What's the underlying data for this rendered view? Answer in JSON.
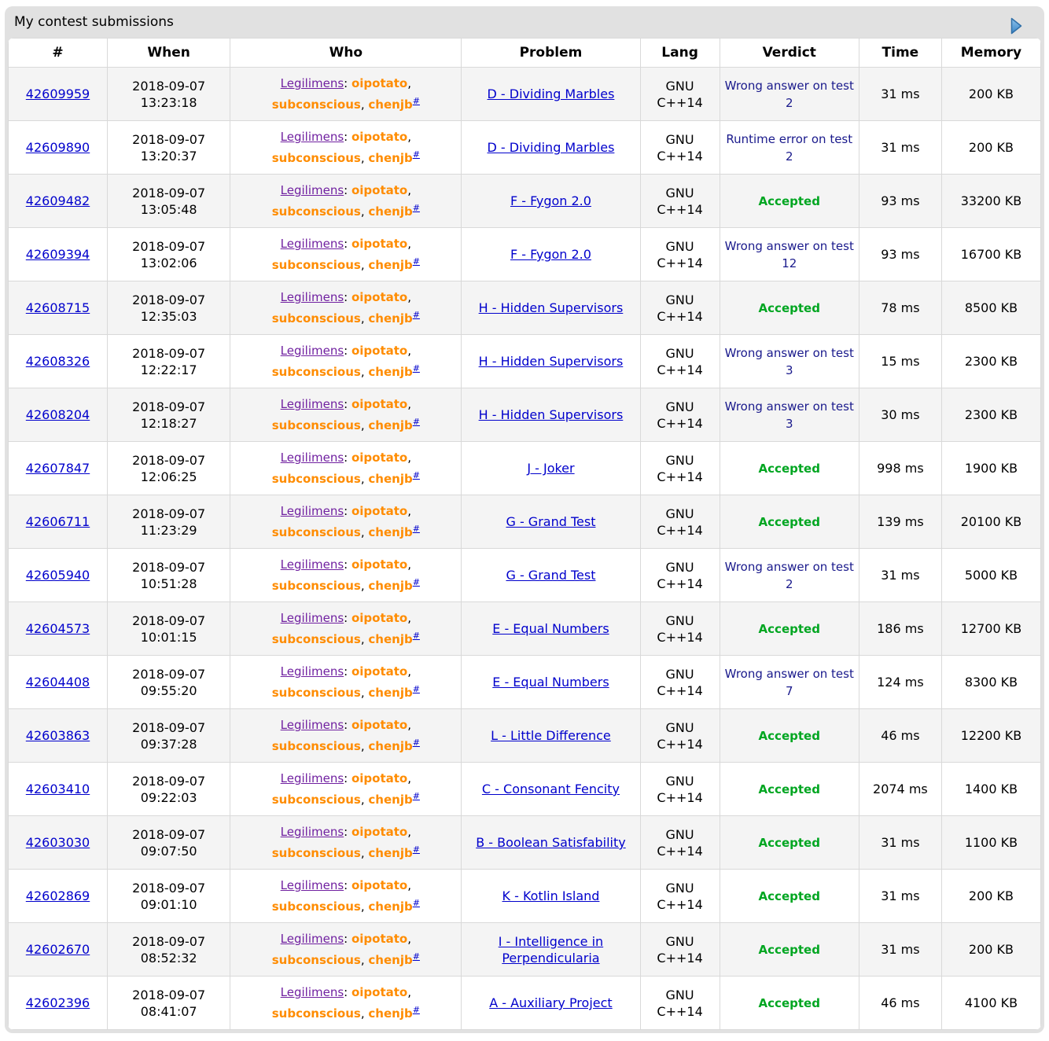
{
  "header": {
    "title": "My contest submissions",
    "next_arrow_icon": "right-pager-arrow"
  },
  "colors": {
    "link_blue": "#0000cc",
    "team_purple": "#7020a0",
    "member_orange": "#ff8c00",
    "accepted_green": "#00a621",
    "rejected_blue": "#1a1a8c",
    "box_gray": "#e1e1e1",
    "row_stripe": "#f4f4f4"
  },
  "table": {
    "columns": [
      "#",
      "When",
      "Who",
      "Problem",
      "Lang",
      "Verdict",
      "Time",
      "Memory"
    ],
    "who": {
      "team": "Legilimens",
      "after_team_separator": ": ",
      "between_members_separator": ", ",
      "members": [
        "oipotato",
        "subconscious",
        "chenjb"
      ],
      "footnote": "#"
    },
    "rows": [
      {
        "id": "42609959",
        "when_date": "2018-09-07",
        "when_time": "13:23:18",
        "problem": "D - Dividing Marbles",
        "lang": "GNU C++14",
        "verdict": "Wrong answer on test 2",
        "verdict_type": "rejected",
        "time": "31 ms",
        "memory": "200 KB"
      },
      {
        "id": "42609890",
        "when_date": "2018-09-07",
        "when_time": "13:20:37",
        "problem": "D - Dividing Marbles",
        "lang": "GNU C++14",
        "verdict": "Runtime error on test 2",
        "verdict_type": "rejected",
        "time": "31 ms",
        "memory": "200 KB"
      },
      {
        "id": "42609482",
        "when_date": "2018-09-07",
        "when_time": "13:05:48",
        "problem": "F - Fygon 2.0",
        "lang": "GNU C++14",
        "verdict": "Accepted",
        "verdict_type": "accepted",
        "time": "93 ms",
        "memory": "33200 KB"
      },
      {
        "id": "42609394",
        "when_date": "2018-09-07",
        "when_time": "13:02:06",
        "problem": "F - Fygon 2.0",
        "lang": "GNU C++14",
        "verdict": "Wrong answer on test 12",
        "verdict_type": "rejected",
        "time": "93 ms",
        "memory": "16700 KB"
      },
      {
        "id": "42608715",
        "when_date": "2018-09-07",
        "when_time": "12:35:03",
        "problem": "H - Hidden Supervisors",
        "lang": "GNU C++14",
        "verdict": "Accepted",
        "verdict_type": "accepted",
        "time": "78 ms",
        "memory": "8500 KB"
      },
      {
        "id": "42608326",
        "when_date": "2018-09-07",
        "when_time": "12:22:17",
        "problem": "H - Hidden Supervisors",
        "lang": "GNU C++14",
        "verdict": "Wrong answer on test 3",
        "verdict_type": "rejected",
        "time": "15 ms",
        "memory": "2300 KB"
      },
      {
        "id": "42608204",
        "when_date": "2018-09-07",
        "when_time": "12:18:27",
        "problem": "H - Hidden Supervisors",
        "lang": "GNU C++14",
        "verdict": "Wrong answer on test 3",
        "verdict_type": "rejected",
        "time": "30 ms",
        "memory": "2300 KB"
      },
      {
        "id": "42607847",
        "when_date": "2018-09-07",
        "when_time": "12:06:25",
        "problem": "J - Joker",
        "lang": "GNU C++14",
        "verdict": "Accepted",
        "verdict_type": "accepted",
        "time": "998 ms",
        "memory": "1900 KB"
      },
      {
        "id": "42606711",
        "when_date": "2018-09-07",
        "when_time": "11:23:29",
        "problem": "G - Grand Test",
        "lang": "GNU C++14",
        "verdict": "Accepted",
        "verdict_type": "accepted",
        "time": "139 ms",
        "memory": "20100 KB"
      },
      {
        "id": "42605940",
        "when_date": "2018-09-07",
        "when_time": "10:51:28",
        "problem": "G - Grand Test",
        "lang": "GNU C++14",
        "verdict": "Wrong answer on test 2",
        "verdict_type": "rejected",
        "time": "31 ms",
        "memory": "5000 KB"
      },
      {
        "id": "42604573",
        "when_date": "2018-09-07",
        "when_time": "10:01:15",
        "problem": "E - Equal Numbers",
        "lang": "GNU C++14",
        "verdict": "Accepted",
        "verdict_type": "accepted",
        "time": "186 ms",
        "memory": "12700 KB"
      },
      {
        "id": "42604408",
        "when_date": "2018-09-07",
        "when_time": "09:55:20",
        "problem": "E - Equal Numbers",
        "lang": "GNU C++14",
        "verdict": "Wrong answer on test 7",
        "verdict_type": "rejected",
        "time": "124 ms",
        "memory": "8300 KB"
      },
      {
        "id": "42603863",
        "when_date": "2018-09-07",
        "when_time": "09:37:28",
        "problem": "L - Little Difference",
        "lang": "GNU C++14",
        "verdict": "Accepted",
        "verdict_type": "accepted",
        "time": "46 ms",
        "memory": "12200 KB"
      },
      {
        "id": "42603410",
        "when_date": "2018-09-07",
        "when_time": "09:22:03",
        "problem": "C - Consonant Fencity",
        "lang": "GNU C++14",
        "verdict": "Accepted",
        "verdict_type": "accepted",
        "time": "2074 ms",
        "memory": "1400 KB"
      },
      {
        "id": "42603030",
        "when_date": "2018-09-07",
        "when_time": "09:07:50",
        "problem": "B - Boolean Satisfability",
        "lang": "GNU C++14",
        "verdict": "Accepted",
        "verdict_type": "accepted",
        "time": "31 ms",
        "memory": "1100 KB"
      },
      {
        "id": "42602869",
        "when_date": "2018-09-07",
        "when_time": "09:01:10",
        "problem": "K - Kotlin Island",
        "lang": "GNU C++14",
        "verdict": "Accepted",
        "verdict_type": "accepted",
        "time": "31 ms",
        "memory": "200 KB"
      },
      {
        "id": "42602670",
        "when_date": "2018-09-07",
        "when_time": "08:52:32",
        "problem": "I - Intelligence in Perpendicularia",
        "lang": "GNU C++14",
        "verdict": "Accepted",
        "verdict_type": "accepted",
        "time": "31 ms",
        "memory": "200 KB"
      },
      {
        "id": "42602396",
        "when_date": "2018-09-07",
        "when_time": "08:41:07",
        "problem": "A - Auxiliary Project",
        "lang": "GNU C++14",
        "verdict": "Accepted",
        "verdict_type": "accepted",
        "time": "46 ms",
        "memory": "4100 KB"
      }
    ]
  }
}
